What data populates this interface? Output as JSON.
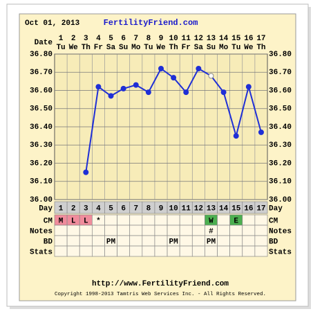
{
  "header": {
    "date": "Oct 01, 2013",
    "site": "FertilityFriend.com"
  },
  "row_labels": {
    "date": "Date",
    "day": "Day",
    "cm": "CM",
    "notes": "Notes",
    "bd": "BD",
    "stats": "Stats"
  },
  "chart_data": {
    "type": "line",
    "categories": [
      "1",
      "2",
      "3",
      "4",
      "5",
      "6",
      "7",
      "8",
      "9",
      "10",
      "11",
      "12",
      "13",
      "14",
      "15",
      "16",
      "17"
    ],
    "weekdays": [
      "Tu",
      "We",
      "Th",
      "Fr",
      "Sa",
      "Su",
      "Mo",
      "Tu",
      "We",
      "Th",
      "Fr",
      "Sa",
      "Su",
      "Mo",
      "Tu",
      "We",
      "Th"
    ],
    "values": [
      null,
      null,
      36.15,
      36.62,
      36.57,
      36.61,
      36.63,
      36.59,
      36.72,
      36.67,
      36.59,
      36.72,
      36.68,
      36.59,
      36.35,
      36.62,
      36.37
    ],
    "markers": [
      null,
      null,
      "filled",
      "filled",
      "filled",
      "filled",
      "filled",
      "filled",
      "filled",
      "filled",
      "filled",
      "filled",
      "open",
      "filled",
      "filled",
      "filled",
      "filled"
    ],
    "color": "#1f2fd6",
    "ylim": [
      36.0,
      36.8
    ],
    "yticks": [
      {
        "value": 36.0,
        "label": "36.00"
      },
      {
        "value": 36.1,
        "label": "36.10"
      },
      {
        "value": 36.2,
        "label": "36.20"
      },
      {
        "value": 36.3,
        "label": "36.30"
      },
      {
        "value": 36.4,
        "label": "36.40"
      },
      {
        "value": 36.5,
        "label": "36.50"
      },
      {
        "value": 36.6,
        "label": "36.60"
      },
      {
        "value": 36.7,
        "label": "36.70"
      },
      {
        "value": 36.8,
        "label": "36.80"
      }
    ],
    "grid": true
  },
  "rows": {
    "cm": [
      "M",
      "L",
      "L",
      "*",
      null,
      null,
      null,
      null,
      null,
      null,
      null,
      null,
      "W",
      null,
      "E",
      null,
      null
    ],
    "cm_fills": [
      "#f08c9c",
      "#f08c9c",
      "#f08c9c",
      null,
      null,
      null,
      null,
      null,
      null,
      null,
      null,
      null,
      "#4caf50",
      null,
      "#4caf50",
      null,
      null
    ],
    "notes": [
      null,
      null,
      null,
      null,
      null,
      null,
      null,
      null,
      null,
      null,
      null,
      null,
      "#",
      null,
      null,
      null,
      null
    ],
    "bd": [
      null,
      null,
      null,
      null,
      "PM",
      null,
      null,
      null,
      null,
      "PM",
      null,
      null,
      "PM",
      null,
      null,
      null,
      null
    ]
  },
  "footer": {
    "url": "http://www.FertilityFriend.com",
    "copyright": "Copyright 1998-2013 Tamtris Web Services Inc. - All Rights Reserved."
  }
}
